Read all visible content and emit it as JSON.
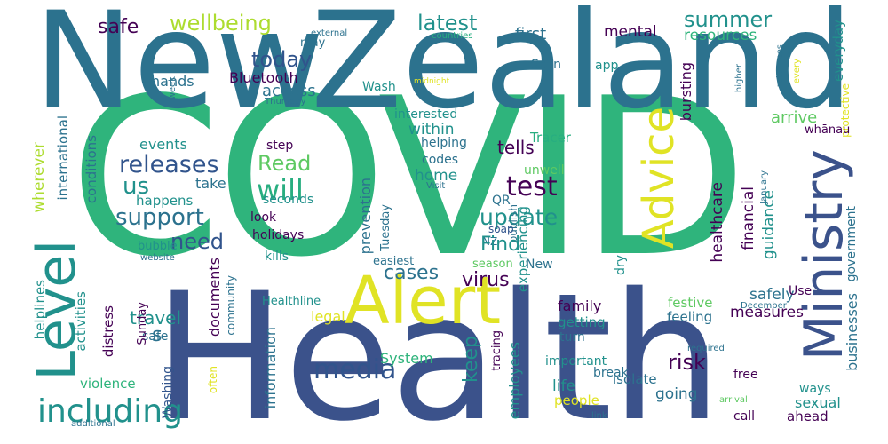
{
  "palette": {
    "dark_purple": "#440154",
    "indigo": "#3b528b",
    "navy": "#31548c",
    "teal_blue": "#2c728e",
    "teal": "#21918c",
    "sea_green": "#28ae80",
    "green": "#2fb47c",
    "lime": "#5ec962",
    "yellow_green": "#addc30",
    "yellow": "#e0e325"
  },
  "words": [
    "COVID",
    "Health",
    "New",
    "Zealand",
    "Alert",
    "Level",
    "Ministry",
    "Advice",
    "including",
    "test",
    "media",
    "update",
    "releases",
    "support",
    "us",
    "need",
    "Read",
    "will",
    "safe",
    "wellbeing",
    "latest",
    "summer",
    "resources",
    "today",
    "Bluetooth",
    "access",
    "hands",
    "may",
    "external",
    "countries",
    "Wash",
    "Scan",
    "app",
    "mental",
    "everyday",
    "every",
    "returnees",
    "higher",
    "week",
    "midnight",
    "Thursday",
    "first",
    "interested",
    "within",
    "helping",
    "home",
    "codes",
    "tells",
    "Tracer",
    "unwell",
    "QR",
    "Visit",
    "publish",
    "NZ",
    "soap",
    "Tuesday",
    "prevention",
    "easiest",
    "cases",
    "virus",
    "keep",
    "Find",
    "bursting",
    "arrive",
    "protective",
    "whānau",
    "guidance",
    "financial",
    "healthcare",
    "risk",
    "safely",
    "measures",
    "family",
    "feeling",
    "festive",
    "businesses",
    "government",
    "January",
    "December",
    "conditions",
    "international",
    "wherever",
    "events",
    "take",
    "happens",
    "bubble",
    "website",
    "step",
    "seconds",
    "look",
    "holidays",
    "kills",
    "travel",
    "safe",
    "helplines",
    "activities",
    "distress",
    "violence",
    "Sunday",
    "Washing",
    "documents",
    "community",
    "information",
    "Healthline",
    "legal",
    "System",
    "employees",
    "tracing",
    "experiencing",
    "season",
    "dry",
    "life",
    "people",
    "important",
    "break",
    "getting",
    "turn",
    "isolate",
    "going",
    "ways",
    "sexual",
    "ahead",
    "free",
    "call",
    "link",
    "arrival",
    "required",
    "often",
    "additional",
    "s",
    "Use",
    "New"
  ]
}
